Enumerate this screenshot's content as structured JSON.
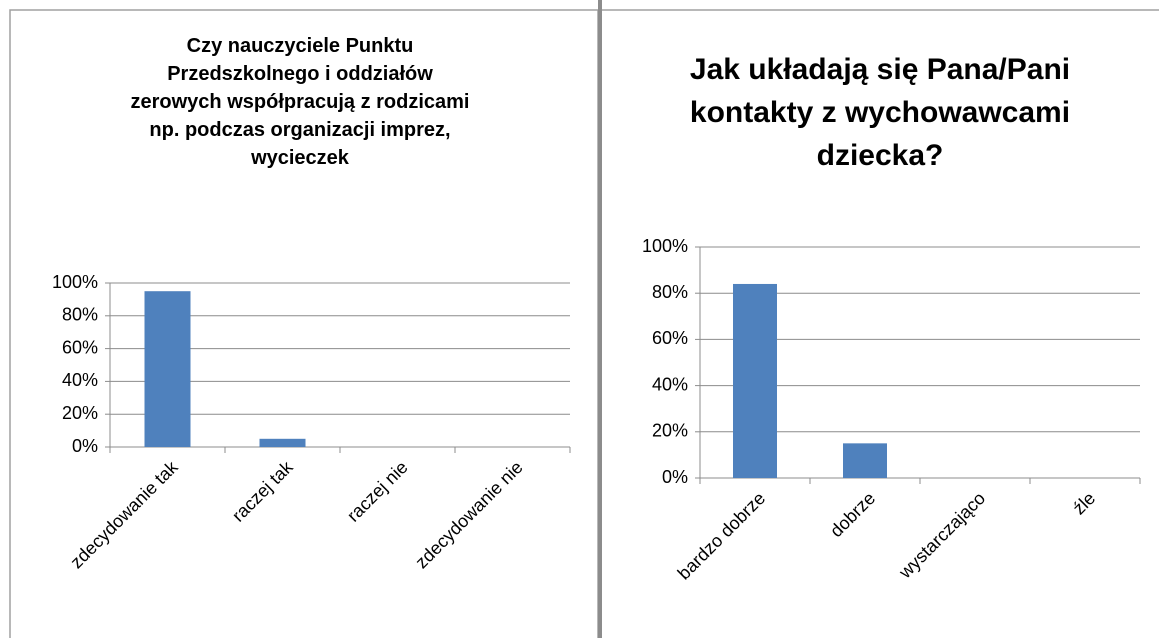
{
  "chart_data": [
    {
      "type": "bar",
      "title": "Czy nauczyciele Punktu\nPrzedszkolnego i oddziałów\nzerowych współpracują z rodzicami\nnp. podczas organizacji imprez,\nwycieczek",
      "categories": [
        "zdecydowanie tak",
        "raczej tak",
        "raczej nie",
        "zdecydowanie nie"
      ],
      "values": [
        95,
        5,
        0,
        0
      ],
      "color": "#4f81bd",
      "ylim": [
        0,
        100
      ],
      "yticks": [
        {
          "value": 0,
          "label": "0%"
        },
        {
          "value": 20,
          "label": "20%"
        },
        {
          "value": 40,
          "label": "40%"
        },
        {
          "value": 60,
          "label": "60%"
        },
        {
          "value": 80,
          "label": "80%"
        },
        {
          "value": 100,
          "label": "100%"
        }
      ],
      "grid": true
    },
    {
      "type": "bar",
      "title": "Jak układają się Pana/Pani\nkontakty z wychowawcami\ndziecka?",
      "categories": [
        "bardzo dobrze",
        "dobrze",
        "wystarczająco",
        "źle"
      ],
      "values": [
        84,
        15,
        0,
        0
      ],
      "color": "#4f81bd",
      "ylim": [
        0,
        100
      ],
      "yticks": [
        {
          "value": 0,
          "label": "0%"
        },
        {
          "value": 20,
          "label": "20%"
        },
        {
          "value": 40,
          "label": "40%"
        },
        {
          "value": 60,
          "label": "60%"
        },
        {
          "value": 80,
          "label": "80%"
        },
        {
          "value": 100,
          "label": "100%"
        }
      ],
      "grid": true
    }
  ]
}
